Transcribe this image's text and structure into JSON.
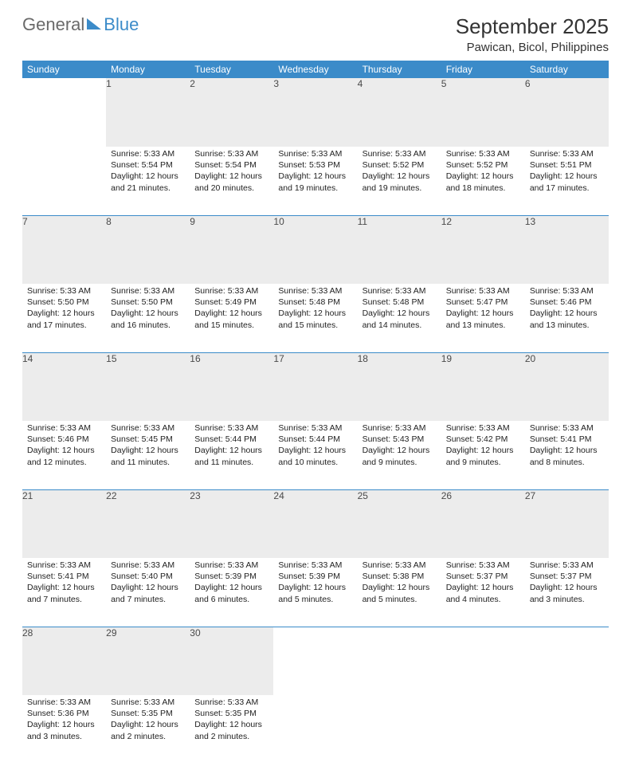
{
  "logo": {
    "word1": "General",
    "word2": "Blue"
  },
  "title": "September 2025",
  "location": "Pawican, Bicol, Philippines",
  "colors": {
    "accent": "#3b8bc9",
    "header_text": "#ffffff",
    "daynum_bg": "#ececec",
    "daynum_text": "#4a4a4a",
    "body_text": "#222222",
    "page_bg": "#ffffff"
  },
  "weekdays": [
    "Sunday",
    "Monday",
    "Tuesday",
    "Wednesday",
    "Thursday",
    "Friday",
    "Saturday"
  ],
  "weeks": [
    [
      null,
      {
        "n": 1,
        "sunrise": "5:33 AM",
        "sunset": "5:54 PM",
        "daylight": "12 hours and 21 minutes."
      },
      {
        "n": 2,
        "sunrise": "5:33 AM",
        "sunset": "5:54 PM",
        "daylight": "12 hours and 20 minutes."
      },
      {
        "n": 3,
        "sunrise": "5:33 AM",
        "sunset": "5:53 PM",
        "daylight": "12 hours and 19 minutes."
      },
      {
        "n": 4,
        "sunrise": "5:33 AM",
        "sunset": "5:52 PM",
        "daylight": "12 hours and 19 minutes."
      },
      {
        "n": 5,
        "sunrise": "5:33 AM",
        "sunset": "5:52 PM",
        "daylight": "12 hours and 18 minutes."
      },
      {
        "n": 6,
        "sunrise": "5:33 AM",
        "sunset": "5:51 PM",
        "daylight": "12 hours and 17 minutes."
      }
    ],
    [
      {
        "n": 7,
        "sunrise": "5:33 AM",
        "sunset": "5:50 PM",
        "daylight": "12 hours and 17 minutes."
      },
      {
        "n": 8,
        "sunrise": "5:33 AM",
        "sunset": "5:50 PM",
        "daylight": "12 hours and 16 minutes."
      },
      {
        "n": 9,
        "sunrise": "5:33 AM",
        "sunset": "5:49 PM",
        "daylight": "12 hours and 15 minutes."
      },
      {
        "n": 10,
        "sunrise": "5:33 AM",
        "sunset": "5:48 PM",
        "daylight": "12 hours and 15 minutes."
      },
      {
        "n": 11,
        "sunrise": "5:33 AM",
        "sunset": "5:48 PM",
        "daylight": "12 hours and 14 minutes."
      },
      {
        "n": 12,
        "sunrise": "5:33 AM",
        "sunset": "5:47 PM",
        "daylight": "12 hours and 13 minutes."
      },
      {
        "n": 13,
        "sunrise": "5:33 AM",
        "sunset": "5:46 PM",
        "daylight": "12 hours and 13 minutes."
      }
    ],
    [
      {
        "n": 14,
        "sunrise": "5:33 AM",
        "sunset": "5:46 PM",
        "daylight": "12 hours and 12 minutes."
      },
      {
        "n": 15,
        "sunrise": "5:33 AM",
        "sunset": "5:45 PM",
        "daylight": "12 hours and 11 minutes."
      },
      {
        "n": 16,
        "sunrise": "5:33 AM",
        "sunset": "5:44 PM",
        "daylight": "12 hours and 11 minutes."
      },
      {
        "n": 17,
        "sunrise": "5:33 AM",
        "sunset": "5:44 PM",
        "daylight": "12 hours and 10 minutes."
      },
      {
        "n": 18,
        "sunrise": "5:33 AM",
        "sunset": "5:43 PM",
        "daylight": "12 hours and 9 minutes."
      },
      {
        "n": 19,
        "sunrise": "5:33 AM",
        "sunset": "5:42 PM",
        "daylight": "12 hours and 9 minutes."
      },
      {
        "n": 20,
        "sunrise": "5:33 AM",
        "sunset": "5:41 PM",
        "daylight": "12 hours and 8 minutes."
      }
    ],
    [
      {
        "n": 21,
        "sunrise": "5:33 AM",
        "sunset": "5:41 PM",
        "daylight": "12 hours and 7 minutes."
      },
      {
        "n": 22,
        "sunrise": "5:33 AM",
        "sunset": "5:40 PM",
        "daylight": "12 hours and 7 minutes."
      },
      {
        "n": 23,
        "sunrise": "5:33 AM",
        "sunset": "5:39 PM",
        "daylight": "12 hours and 6 minutes."
      },
      {
        "n": 24,
        "sunrise": "5:33 AM",
        "sunset": "5:39 PM",
        "daylight": "12 hours and 5 minutes."
      },
      {
        "n": 25,
        "sunrise": "5:33 AM",
        "sunset": "5:38 PM",
        "daylight": "12 hours and 5 minutes."
      },
      {
        "n": 26,
        "sunrise": "5:33 AM",
        "sunset": "5:37 PM",
        "daylight": "12 hours and 4 minutes."
      },
      {
        "n": 27,
        "sunrise": "5:33 AM",
        "sunset": "5:37 PM",
        "daylight": "12 hours and 3 minutes."
      }
    ],
    [
      {
        "n": 28,
        "sunrise": "5:33 AM",
        "sunset": "5:36 PM",
        "daylight": "12 hours and 3 minutes."
      },
      {
        "n": 29,
        "sunrise": "5:33 AM",
        "sunset": "5:35 PM",
        "daylight": "12 hours and 2 minutes."
      },
      {
        "n": 30,
        "sunrise": "5:33 AM",
        "sunset": "5:35 PM",
        "daylight": "12 hours and 2 minutes."
      },
      null,
      null,
      null,
      null
    ]
  ],
  "labels": {
    "sunrise": "Sunrise:",
    "sunset": "Sunset:",
    "daylight": "Daylight:"
  }
}
